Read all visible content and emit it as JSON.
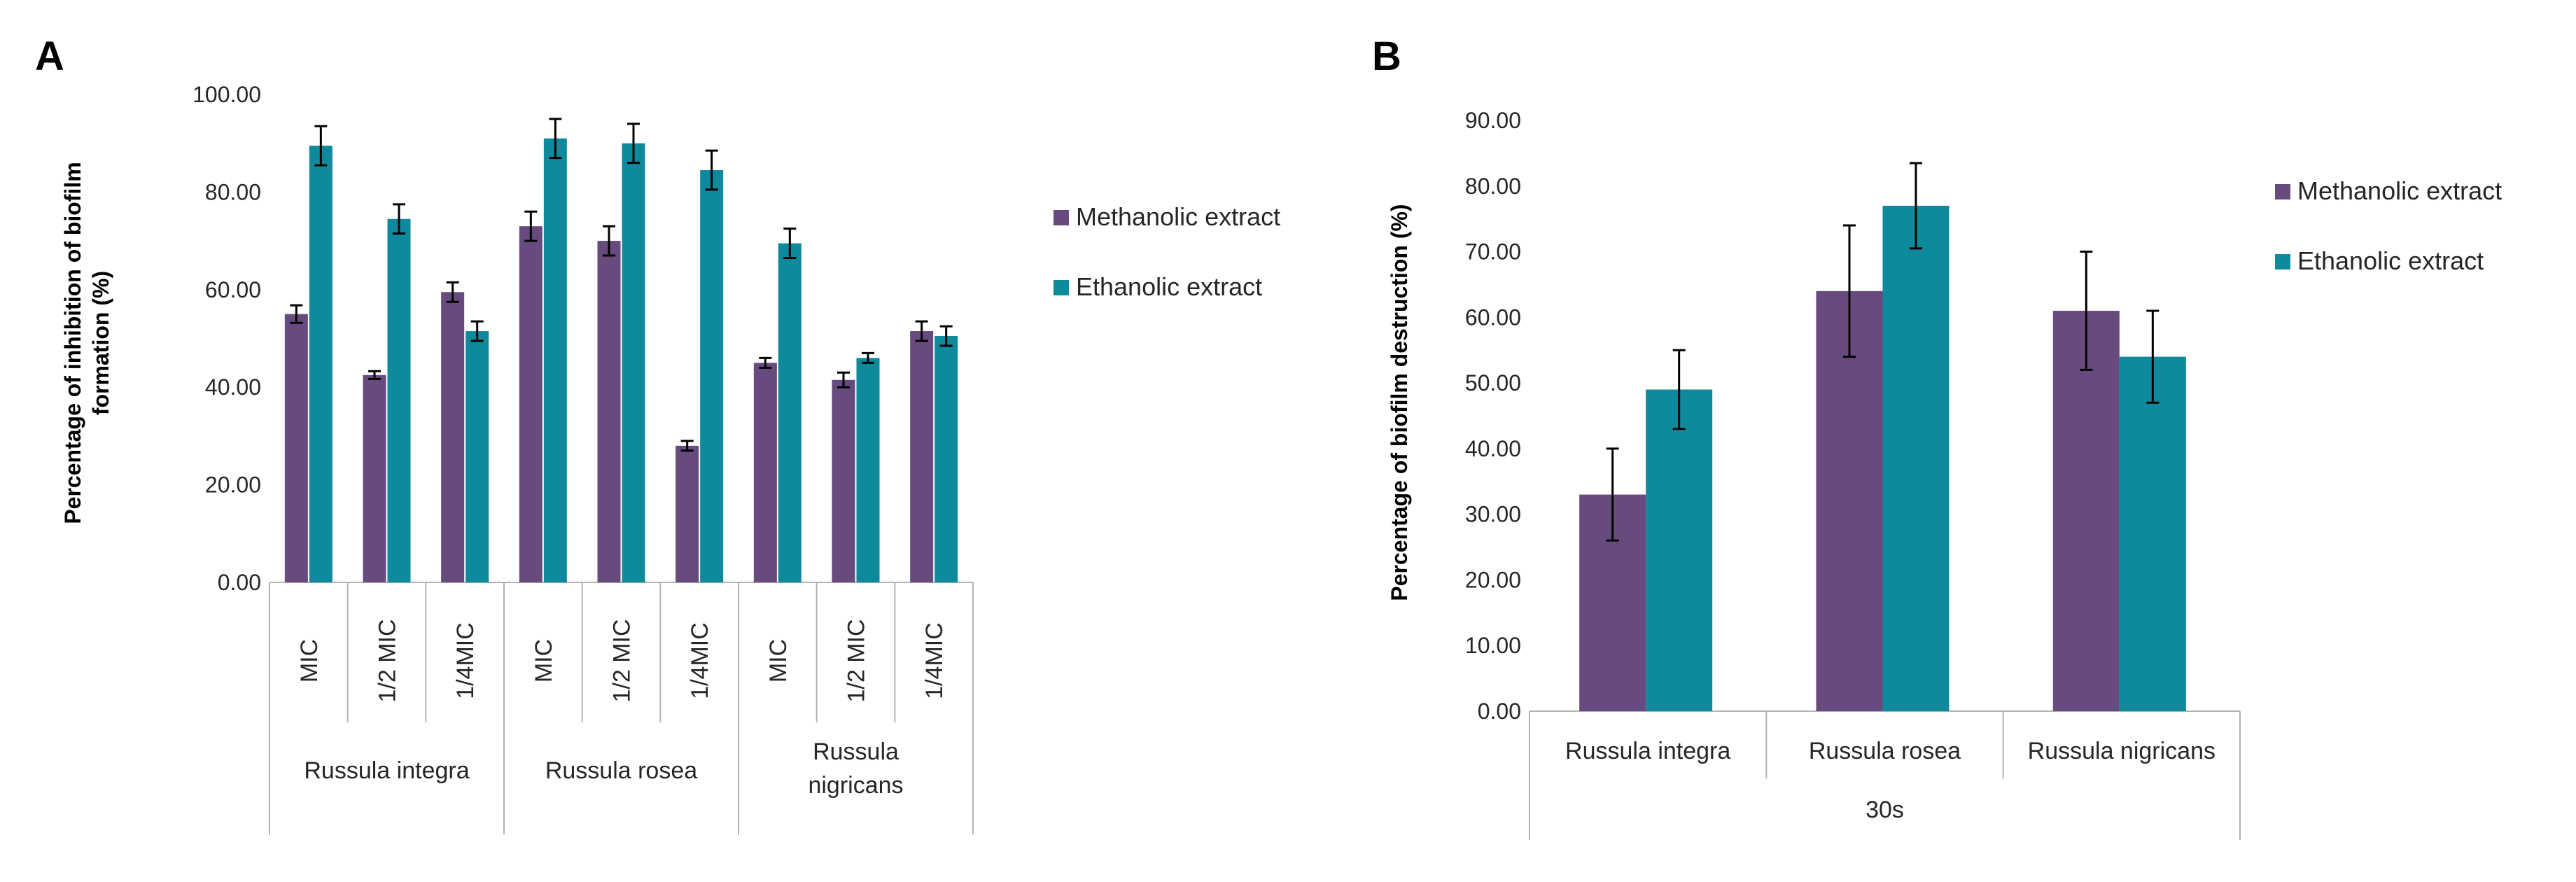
{
  "chart_data": [
    {
      "panel_label": "A",
      "type": "bar",
      "title": "",
      "ylabel_lines": [
        "Percentage of inhibition of biofilm",
        "formation (%)"
      ],
      "xlabel": "",
      "ylim": [
        0,
        100
      ],
      "yticks": [
        "0.00",
        "20.00",
        "40.00",
        "60.00",
        "80.00",
        "100.00"
      ],
      "groups": [
        {
          "name": "Russula integra",
          "lines": [
            "Russula integra"
          ]
        },
        {
          "name": "Russula rosea",
          "lines": [
            "Russula rosea"
          ]
        },
        {
          "name": "Russula nigricans",
          "lines": [
            "Russula",
            "nigricans"
          ]
        }
      ],
      "categories": [
        "MIC",
        "1/2 MIC",
        "1/4MIC",
        "MIC",
        "1/2 MIC",
        "1/4MIC",
        "MIC",
        "1/2 MIC",
        "1/4MIC"
      ],
      "series": [
        {
          "name": "Methanolic extract",
          "color": "#674A7E",
          "values": [
            55.0,
            42.5,
            59.5,
            73.0,
            70.0,
            28.0,
            45.0,
            41.5,
            51.5
          ],
          "errors": [
            1.8,
            0.8,
            2.0,
            3.0,
            3.0,
            1.0,
            1.0,
            1.5,
            2.0
          ]
        },
        {
          "name": "Ethanolic extract",
          "color": "#0E8A9C",
          "values": [
            89.5,
            74.5,
            51.5,
            91.0,
            90.0,
            84.5,
            69.5,
            46.0,
            50.5
          ],
          "errors": [
            4.0,
            3.0,
            2.0,
            4.0,
            4.0,
            4.0,
            3.0,
            1.0,
            2.0
          ]
        }
      ],
      "legend": [
        "Methanolic extract",
        "Ethanolic extract"
      ]
    },
    {
      "panel_label": "B",
      "type": "bar",
      "title": "",
      "ylabel": "Percentage of biofilm destruction (%)",
      "xlabel": "30s",
      "ylim": [
        0,
        90
      ],
      "yticks": [
        "0.00",
        "10.00",
        "20.00",
        "30.00",
        "40.00",
        "50.00",
        "60.00",
        "70.00",
        "80.00",
        "90.00"
      ],
      "categories": [
        "Russula integra",
        "Russula rosea",
        "Russula nigricans"
      ],
      "series": [
        {
          "name": "Methanolic extract",
          "color": "#674A7E",
          "values": [
            33.0,
            64.0,
            61.0
          ],
          "errors": [
            7.0,
            10.0,
            9.0
          ]
        },
        {
          "name": "Ethanolic extract",
          "color": "#0E8A9C",
          "values": [
            49.0,
            77.0,
            54.0
          ],
          "errors": [
            6.0,
            6.5,
            7.0
          ]
        }
      ],
      "legend": [
        "Methanolic extract",
        "Ethanolic extract"
      ]
    }
  ]
}
